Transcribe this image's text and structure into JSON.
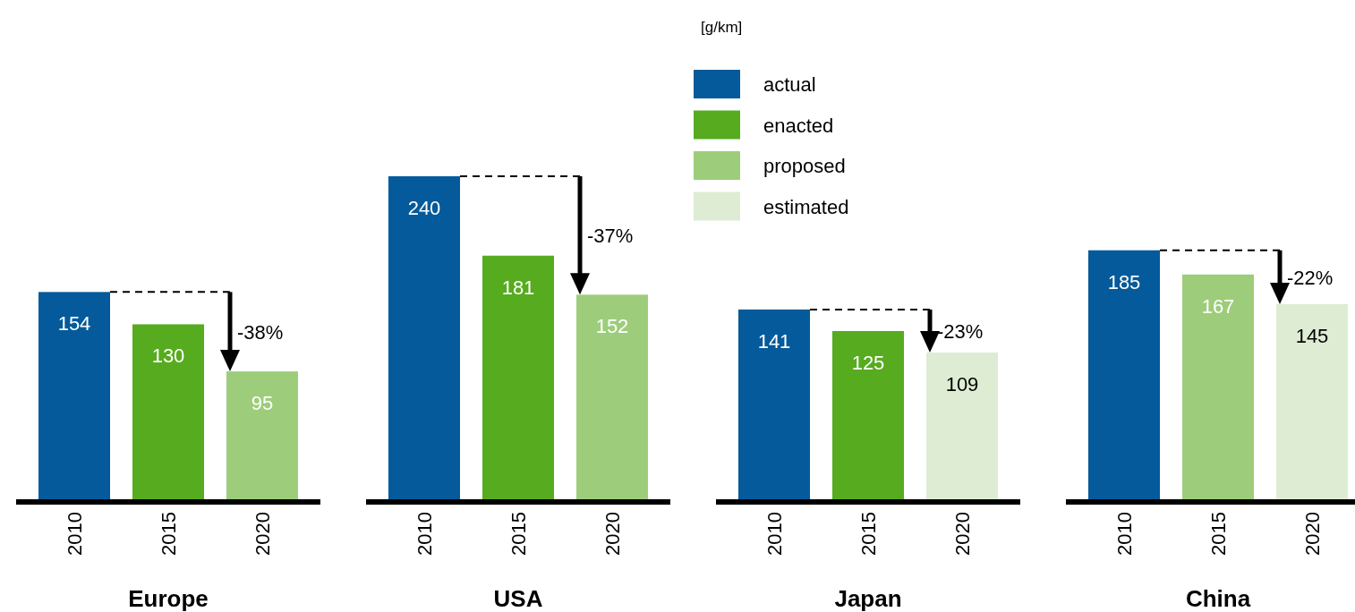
{
  "chart_data": [
    {
      "type": "bar",
      "xlabel": "Europe",
      "categories": [
        "2010",
        "2015",
        "2020"
      ],
      "data_labels": true,
      "annotations": [
        "-38%"
      ],
      "series": [
        {
          "color": "#045a9a",
          "values": [
            154,
            null,
            null
          ]
        },
        {
          "color": "#57ab1f",
          "values": [
            null,
            130,
            null
          ]
        },
        {
          "color": "#9dcd7a",
          "values": [
            null,
            null,
            95
          ]
        }
      ]
    },
    {
      "type": "bar",
      "xlabel": "USA",
      "categories": [
        "2010",
        "2015",
        "2020"
      ],
      "data_labels": true,
      "annotations": [
        "-37%"
      ],
      "legend": "top right",
      "legend_title": "[g/km]",
      "series": [
        {
          "name": "actual",
          "color": "#045a9a",
          "values": [
            240,
            null,
            null
          ]
        },
        {
          "name": "enacted",
          "color": "#57ab1f",
          "values": [
            null,
            181,
            null
          ]
        },
        {
          "name": "proposed",
          "color": "#9dcd7a",
          "values": [
            null,
            null,
            152
          ]
        },
        {
          "name": "estimated",
          "color": "#ddecd3",
          "values": [
            null,
            null,
            null
          ]
        }
      ]
    },
    {
      "type": "bar",
      "xlabel": "Japan",
      "categories": [
        "2010",
        "2015",
        "2020"
      ],
      "data_labels": true,
      "annotations": [
        "-23%"
      ],
      "series": [
        {
          "color": "#045a9a",
          "values": [
            141,
            null,
            null
          ]
        },
        {
          "color": "#57ab1f",
          "values": [
            null,
            125,
            null
          ]
        },
        {
          "color": "#ddecd3",
          "values": [
            null,
            null,
            109
          ]
        }
      ]
    },
    {
      "type": "bar",
      "xlabel": "China",
      "categories": [
        "2010",
        "2015",
        "2020"
      ],
      "data_labels": true,
      "annotations": [
        "-22%"
      ],
      "series": [
        {
          "color": "#045a9a",
          "values": [
            185,
            null,
            null
          ]
        },
        {
          "color": "#9dcd7a",
          "values": [
            null,
            167,
            null
          ]
        },
        {
          "color": "#ddecd3",
          "values": [
            null,
            null,
            145
          ]
        }
      ]
    }
  ]
}
